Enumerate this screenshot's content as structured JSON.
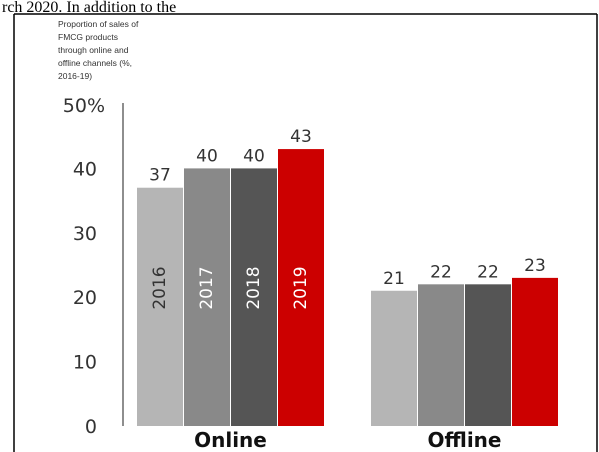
{
  "caption": "rch 2020. In addition to the",
  "colors": {
    "2016": "#b5b5b5",
    "2017": "#898989",
    "2018": "#555555",
    "2019": "#cc0000",
    "axis": "#444444",
    "frame": "#000000"
  },
  "chart_data": {
    "type": "bar",
    "title": [
      "Proportion of sales of",
      "FMCG products",
      "through online and",
      "offline channels (%,",
      "2016-19)"
    ],
    "categories": [
      "Online",
      "Offline"
    ],
    "series": [
      {
        "name": "2016",
        "values": [
          37,
          21
        ]
      },
      {
        "name": "2017",
        "values": [
          40,
          22
        ]
      },
      {
        "name": "2018",
        "values": [
          40,
          22
        ]
      },
      {
        "name": "2019",
        "values": [
          43,
          23
        ]
      }
    ],
    "ylim": [
      0,
      50
    ],
    "yticks": [
      0,
      10,
      20,
      30,
      40
    ],
    "ytick_labels": [
      "0",
      "10",
      "20",
      "30",
      "40"
    ],
    "ytop_label": "50%",
    "xlabel": "",
    "ylabel": "",
    "grid": false,
    "legend": "none",
    "year_labels_inside_bars": "Online"
  }
}
